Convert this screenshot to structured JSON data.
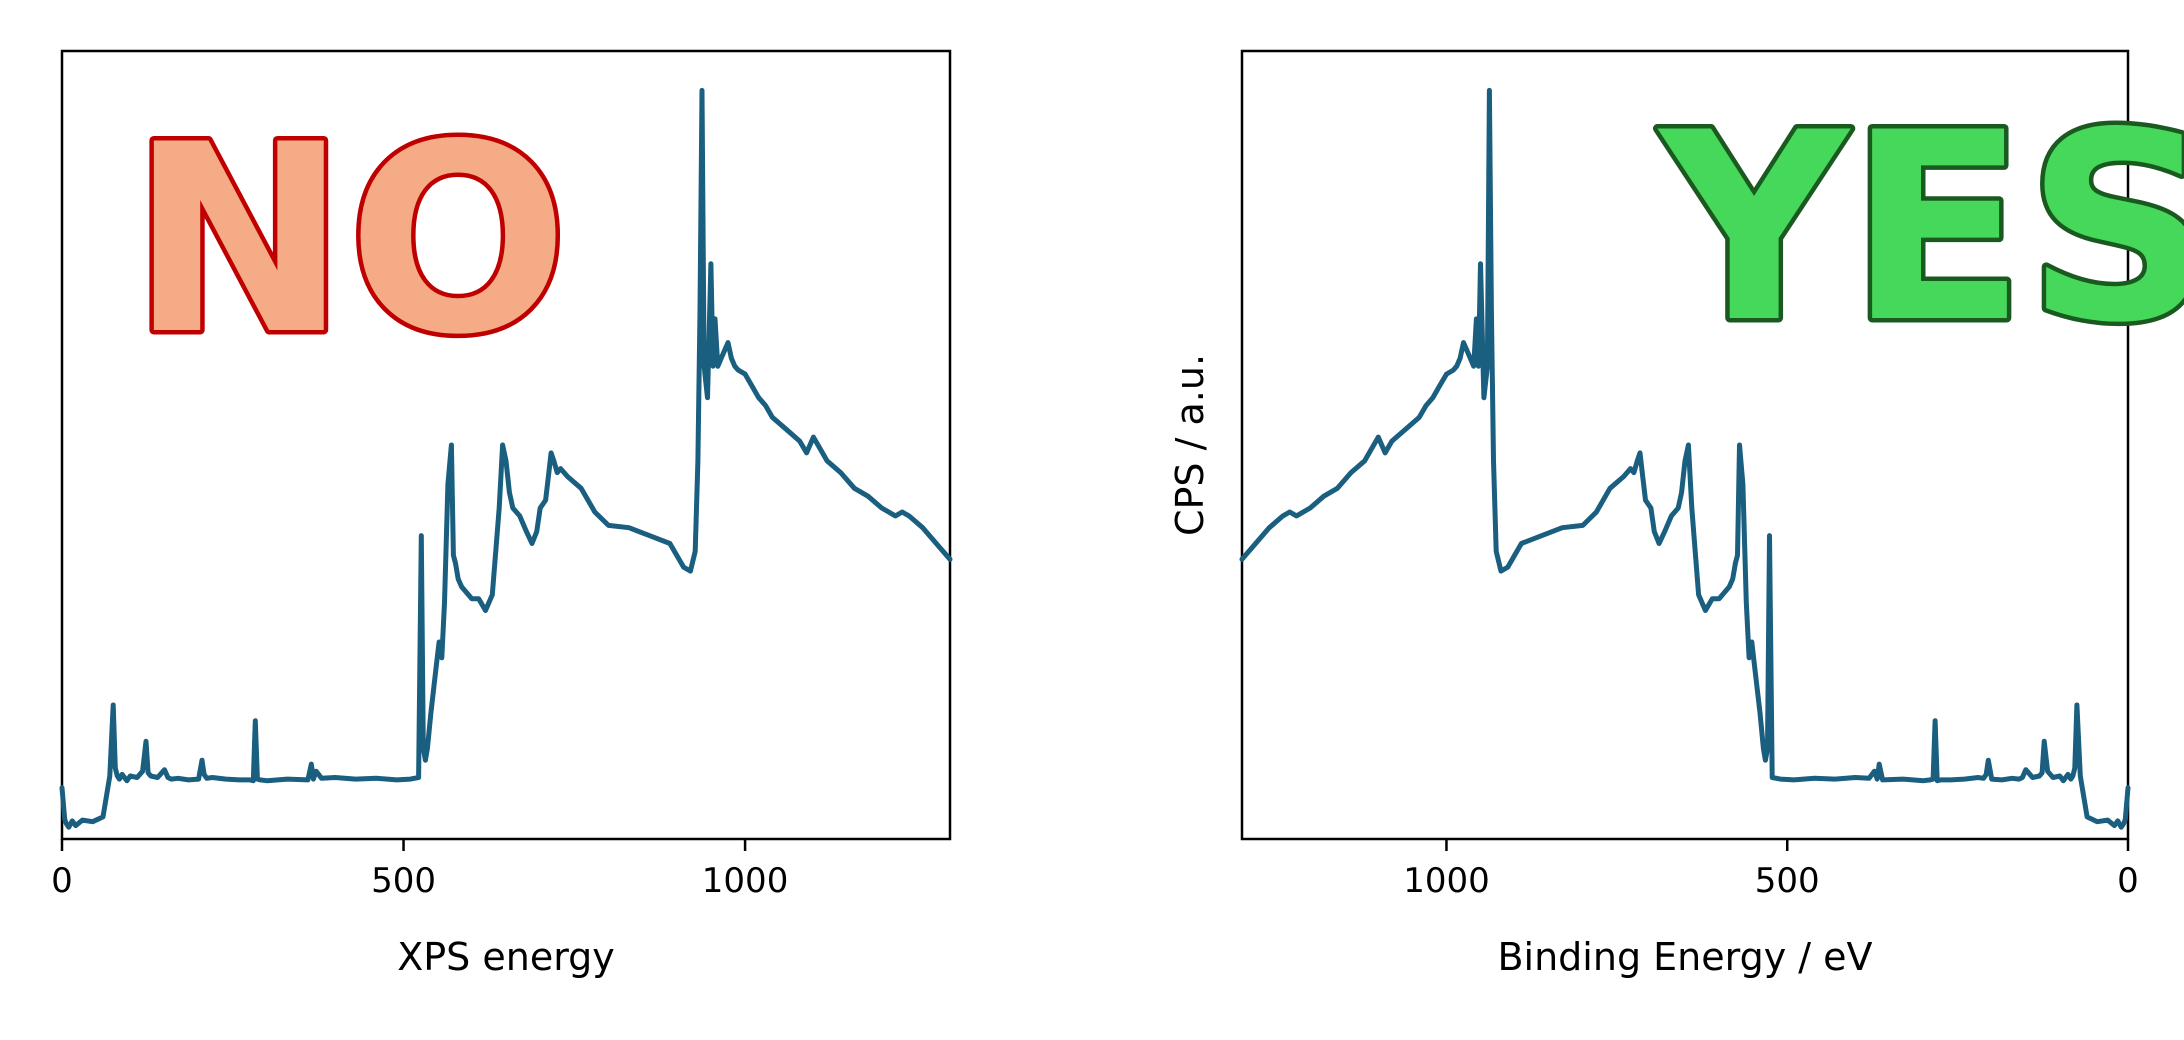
{
  "chart_data": [
    {
      "type": "line",
      "title": "",
      "overlay_text": "NO",
      "overlay_fill": "#F4AB86",
      "overlay_stroke": "#C00000",
      "xlabel": "XPS energy",
      "ylabel": "",
      "xlim": [
        0,
        1300
      ],
      "x_reversed": false,
      "ylim": [
        0,
        100
      ],
      "xticks": [
        0,
        500,
        1000
      ],
      "show_yticks": false,
      "grid": false,
      "line_color": "#1A5E80",
      "series": [
        {
          "x": [
            0,
            4,
            6,
            10,
            15,
            20,
            30,
            45,
            60,
            70,
            75,
            78,
            81,
            84,
            88,
            95,
            100,
            110,
            118,
            123,
            126,
            130,
            140,
            150,
            155,
            160,
            170,
            185,
            200,
            205,
            208,
            212,
            220,
            240,
            260,
            275,
            280,
            283,
            286,
            290,
            300,
            330,
            360,
            365,
            368,
            372,
            380,
            400,
            430,
            460,
            490,
            510,
            522,
            526,
            529,
            532,
            535,
            540,
            548,
            552,
            556,
            560,
            565,
            570,
            573,
            576,
            580,
            585,
            590,
            600,
            610,
            620,
            630,
            640,
            645,
            650,
            655,
            660,
            670,
            680,
            688,
            695,
            700,
            708,
            712,
            716,
            720,
            725,
            730,
            740,
            760,
            780,
            800,
            830,
            860,
            890,
            910,
            920,
            927,
            931,
            934,
            937,
            940,
            945,
            950,
            953,
            956,
            960,
            965,
            970,
            975,
            980,
            985,
            990,
            1000,
            1010,
            1020,
            1030,
            1040,
            1060,
            1080,
            1090,
            1095,
            1100,
            1110,
            1120,
            1140,
            1160,
            1180,
            1200,
            1220,
            1230,
            1240,
            1260,
            1280,
            1300
          ],
          "y": [
            6.5,
            2.5,
            2,
            1.5,
            2.3,
            1.7,
            2.4,
            2.2,
            2.8,
            8,
            17,
            9,
            8,
            7.6,
            8.2,
            7.4,
            8,
            7.8,
            8.6,
            12.4,
            8.4,
            8,
            7.8,
            8.8,
            7.8,
            7.6,
            7.7,
            7.5,
            7.6,
            10,
            8.2,
            7.7,
            7.8,
            7.6,
            7.5,
            7.5,
            7.4,
            15,
            7.6,
            7.5,
            7.4,
            7.6,
            7.5,
            9.5,
            7.6,
            8.6,
            7.7,
            7.8,
            7.6,
            7.7,
            7.5,
            7.6,
            7.8,
            38.5,
            11.5,
            10,
            11.5,
            16,
            22,
            25,
            23,
            30,
            45,
            50,
            36,
            35,
            33,
            32,
            31.5,
            30.5,
            30.5,
            29,
            31,
            42,
            50,
            48,
            44,
            42,
            41,
            39,
            37.5,
            39,
            42,
            43,
            46,
            49,
            48,
            46.5,
            47,
            46,
            44.5,
            41.5,
            39.8,
            39.5,
            38.5,
            37.5,
            34.5,
            34,
            36.5,
            48,
            67,
            95,
            60,
            56,
            73,
            60,
            66,
            60,
            61,
            62,
            63,
            61,
            60,
            59.5,
            59,
            57.5,
            56,
            55,
            53.5,
            52,
            50.5,
            49,
            50,
            51,
            49.5,
            48,
            46.5,
            44.5,
            43.5,
            42,
            41,
            41.5,
            41,
            39.5,
            37.5,
            35.5
          ]
        }
      ]
    },
    {
      "type": "line",
      "title": "",
      "overlay_text": "YES",
      "overlay_fill": "#46D85A",
      "overlay_stroke": "#1A5A20",
      "xlabel": "Binding Energy / eV",
      "ylabel": "CPS / a.u.",
      "xlim": [
        1300,
        0
      ],
      "x_reversed": true,
      "ylim": [
        0,
        100
      ],
      "xticks": [
        1000,
        500,
        0
      ],
      "show_yticks": false,
      "grid": false,
      "line_color": "#1A5E80",
      "series": [
        {
          "x": [
            1300,
            1280,
            1260,
            1240,
            1230,
            1220,
            1200,
            1180,
            1160,
            1140,
            1120,
            1110,
            1100,
            1095,
            1090,
            1080,
            1060,
            1040,
            1030,
            1020,
            1010,
            1000,
            990,
            985,
            980,
            975,
            970,
            965,
            960,
            956,
            953,
            950,
            945,
            940,
            937,
            934,
            931,
            927,
            920,
            910,
            890,
            860,
            830,
            800,
            780,
            760,
            740,
            730,
            725,
            720,
            716,
            712,
            708,
            700,
            695,
            688,
            680,
            670,
            660,
            655,
            650,
            645,
            640,
            630,
            620,
            610,
            600,
            590,
            585,
            580,
            576,
            573,
            570,
            565,
            560,
            556,
            552,
            548,
            540,
            535,
            532,
            529,
            526,
            522,
            510,
            490,
            460,
            430,
            400,
            380,
            372,
            368,
            365,
            360,
            330,
            300,
            290,
            286,
            283,
            280,
            275,
            260,
            240,
            220,
            212,
            208,
            205,
            200,
            185,
            170,
            160,
            155,
            150,
            140,
            130,
            126,
            123,
            118,
            110,
            100,
            95,
            88,
            84,
            81,
            78,
            75,
            70,
            60,
            45,
            30,
            20,
            15,
            10,
            6,
            4,
            0
          ],
          "y": [
            35.5,
            37.5,
            39.5,
            41,
            41.5,
            41,
            42,
            43.5,
            44.5,
            46.5,
            48,
            49.5,
            51,
            50,
            49,
            50.5,
            52,
            53.5,
            55,
            56,
            57.5,
            59,
            59.5,
            60,
            61,
            63,
            62,
            61,
            60,
            66,
            60,
            73,
            56,
            60,
            95,
            67,
            48,
            36.5,
            34,
            34.5,
            37.5,
            38.5,
            39.5,
            39.8,
            41.5,
            44.5,
            46,
            47,
            46.5,
            48,
            49,
            46,
            43,
            42,
            39,
            37.5,
            39,
            41,
            42,
            44,
            48,
            50,
            42,
            31,
            29,
            30.5,
            30.5,
            31.5,
            32,
            33,
            35,
            36,
            50,
            45,
            30,
            23,
            25,
            22,
            16,
            11.5,
            10,
            11.5,
            38.5,
            7.8,
            7.6,
            7.5,
            7.7,
            7.6,
            7.8,
            7.7,
            8.6,
            7.6,
            9.5,
            7.5,
            7.6,
            7.4,
            7.5,
            7.6,
            15,
            7.4,
            7.5,
            7.5,
            7.6,
            7.8,
            7.7,
            8.2,
            10,
            7.6,
            7.5,
            7.7,
            7.6,
            7.8,
            8.8,
            7.8,
            8,
            8.4,
            12.4,
            8.6,
            7.8,
            8,
            7.4,
            8.2,
            7.6,
            8,
            9,
            17,
            8,
            2.8,
            2.2,
            2.4,
            1.7,
            2.3,
            1.5,
            2,
            2.5,
            6.5
          ]
        }
      ]
    }
  ]
}
